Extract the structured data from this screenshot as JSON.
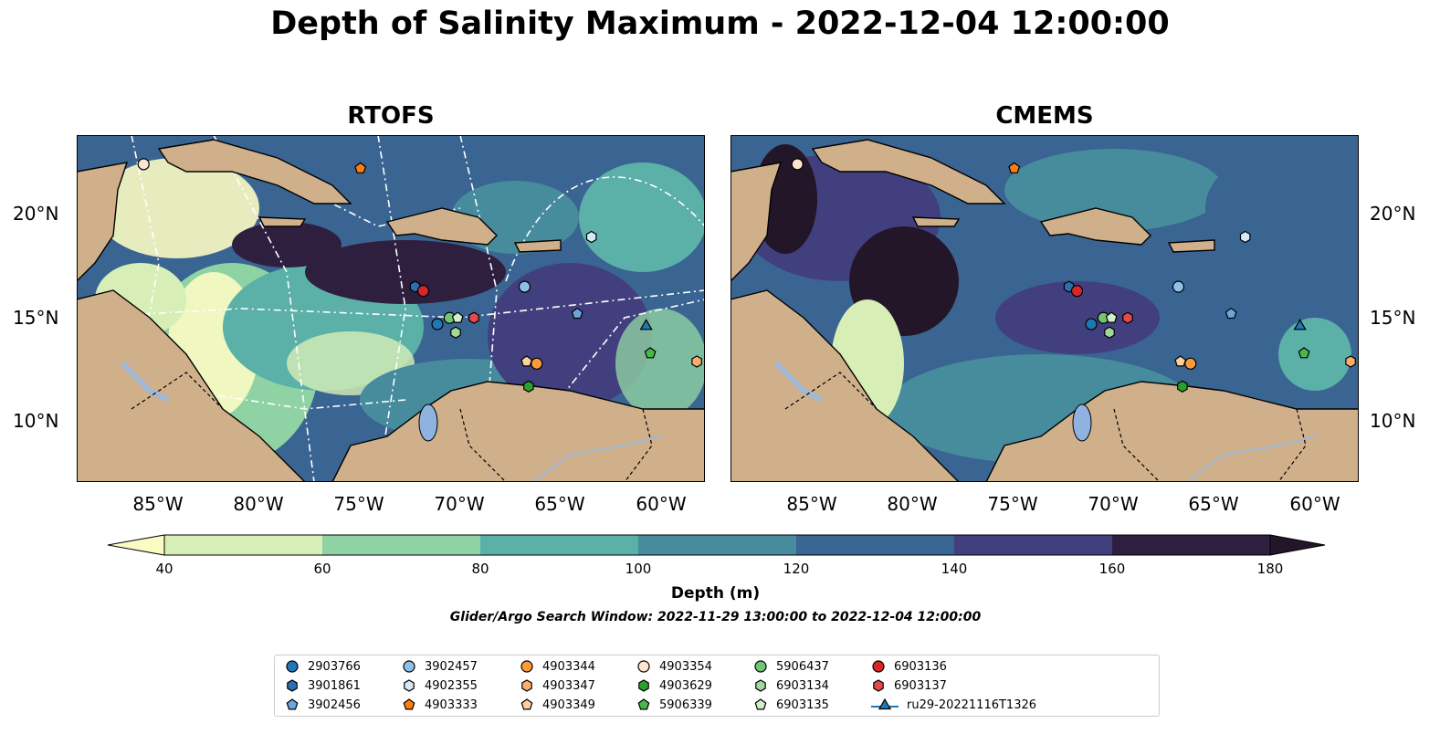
{
  "title": "Depth of Salinity Maximum - 2022-12-04 12:00:00",
  "panels": [
    {
      "key": "rtofs",
      "title": "RTOFS"
    },
    {
      "key": "cmems",
      "title": "CMEMS"
    }
  ],
  "lat_ticks": [
    "20°N",
    "15°N",
    "10°N"
  ],
  "lon_ticks": [
    "85°W",
    "80°W",
    "75°W",
    "70°W",
    "65°W",
    "60°W"
  ],
  "colorbar": {
    "label": "Depth (m)",
    "ticks": [
      "40",
      "60",
      "80",
      "100",
      "120",
      "140",
      "160",
      "180"
    ],
    "colors": [
      "#fbfbc4",
      "#d7efb6",
      "#8fd2a3",
      "#5bb0a8",
      "#468c9d",
      "#3a6491",
      "#413f7e",
      "#2e1f3f",
      "#231628"
    ]
  },
  "search_window": "Glider/Argo Search Window: 2022-11-29 13:00:00 to 2022-12-04 12:00:00",
  "legend": [
    {
      "id": "2903766",
      "shape": "circle",
      "color": "#1f77b4"
    },
    {
      "id": "3901861",
      "shape": "hexagon",
      "color": "#2a6fb0"
    },
    {
      "id": "3902456",
      "shape": "pentagon",
      "color": "#6aa6dc"
    },
    {
      "id": "3902457",
      "shape": "circle",
      "color": "#8ec0e8"
    },
    {
      "id": "4902355",
      "shape": "hexagon",
      "color": "#d5e8f7"
    },
    {
      "id": "4903333",
      "shape": "pentagon",
      "color": "#ff7f0e"
    },
    {
      "id": "4903344",
      "shape": "circle",
      "color": "#fd9a3c"
    },
    {
      "id": "4903347",
      "shape": "hexagon",
      "color": "#fdae6b"
    },
    {
      "id": "4903349",
      "shape": "pentagon",
      "color": "#fdd0a2"
    },
    {
      "id": "4903354",
      "shape": "circle",
      "color": "#fee6ce"
    },
    {
      "id": "4903629",
      "shape": "hexagon",
      "color": "#2ca02c"
    },
    {
      "id": "5906339",
      "shape": "pentagon",
      "color": "#49b849"
    },
    {
      "id": "5906437",
      "shape": "circle",
      "color": "#74c476"
    },
    {
      "id": "6903134",
      "shape": "hexagon",
      "color": "#a1d99b"
    },
    {
      "id": "6903135",
      "shape": "pentagon",
      "color": "#d2f0c8"
    },
    {
      "id": "6903136",
      "shape": "circle",
      "color": "#d62728"
    },
    {
      "id": "6903137",
      "shape": "hexagon",
      "color": "#e34a4a"
    },
    {
      "id": "ru29-20221116T1326",
      "shape": "triangle-line",
      "color": "#1f77b4"
    }
  ],
  "observations": [
    {
      "id": "4903354",
      "lon": -85.7,
      "lat": 22.3
    },
    {
      "id": "4903333",
      "lon": -75.0,
      "lat": 22.1
    },
    {
      "id": "4902355",
      "lon": -63.6,
      "lat": 18.8
    },
    {
      "id": "3901861",
      "lon": -72.3,
      "lat": 16.4
    },
    {
      "id": "6903136",
      "lon": -71.9,
      "lat": 16.2
    },
    {
      "id": "3902457",
      "lon": -66.9,
      "lat": 16.4
    },
    {
      "id": "3902456",
      "lon": -64.3,
      "lat": 15.1
    },
    {
      "id": "2903766",
      "lon": -71.2,
      "lat": 14.6
    },
    {
      "id": "5906437",
      "lon": -70.6,
      "lat": 14.9
    },
    {
      "id": "6903135",
      "lon": -70.2,
      "lat": 14.9
    },
    {
      "id": "6903134",
      "lon": -70.3,
      "lat": 14.2
    },
    {
      "id": "6903137",
      "lon": -69.4,
      "lat": 14.9
    },
    {
      "id": "4903349",
      "lon": -66.8,
      "lat": 12.8
    },
    {
      "id": "4903344",
      "lon": -66.3,
      "lat": 12.7
    },
    {
      "id": "4903629",
      "lon": -66.7,
      "lat": 11.6
    },
    {
      "id": "ru29-20221116T1326",
      "lon": -60.9,
      "lat": 14.5
    },
    {
      "id": "5906339",
      "lon": -60.7,
      "lat": 13.2
    },
    {
      "id": "4903347",
      "lon": -58.4,
      "lat": 12.8
    }
  ]
}
